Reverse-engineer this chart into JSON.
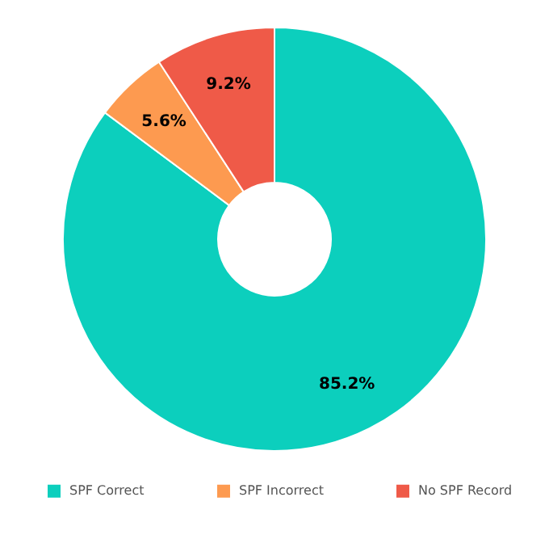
{
  "chart_data": {
    "type": "donut",
    "categories": [
      "SPF Correct",
      "SPF Incorrect",
      "No SPF Record"
    ],
    "values": [
      85.2,
      5.6,
      9.2
    ],
    "value_labels": [
      "85.2%",
      "5.6%",
      "9.2%"
    ],
    "colors": [
      "#0ccfbd",
      "#fd9a50",
      "#ef5a48"
    ],
    "legend": "bottom"
  }
}
